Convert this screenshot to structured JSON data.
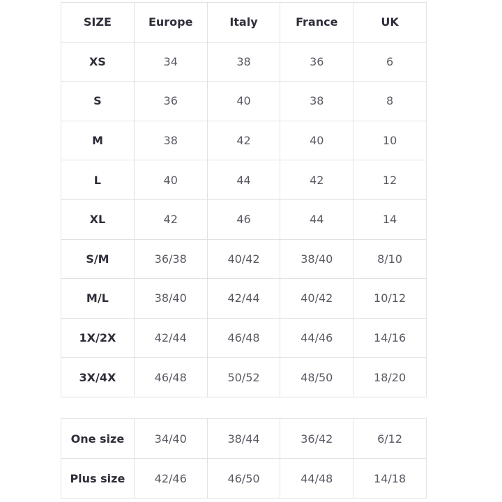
{
  "main_table": {
    "headers": [
      "SIZE",
      "Europe",
      "Italy",
      "France",
      "UK"
    ],
    "rows": [
      [
        "XS",
        "34",
        "38",
        "36",
        "6"
      ],
      [
        "S",
        "36",
        "40",
        "38",
        "8"
      ],
      [
        "M",
        "38",
        "42",
        "40",
        "10"
      ],
      [
        "L",
        "40",
        "44",
        "42",
        "12"
      ],
      [
        "XL",
        "42",
        "46",
        "44",
        "14"
      ],
      [
        "S/M",
        "36/38",
        "40/42",
        "38/40",
        "8/10"
      ],
      [
        "M/L",
        "38/40",
        "42/44",
        "40/42",
        "10/12"
      ],
      [
        "1X/2X",
        "42/44",
        "46/48",
        "44/46",
        "14/16"
      ],
      [
        "3X/4X",
        "46/48",
        "50/52",
        "48/50",
        "18/20"
      ]
    ]
  },
  "extra_table": {
    "rows": [
      [
        "One size",
        "34/40",
        "38/44",
        "36/42",
        "6/12"
      ],
      [
        "Plus size",
        "42/46",
        "46/50",
        "44/48",
        "14/18"
      ]
    ]
  },
  "colors": {
    "border": "#e2e2e2",
    "header_text": "#2e2e3a",
    "value_text": "#5a5a64"
  }
}
